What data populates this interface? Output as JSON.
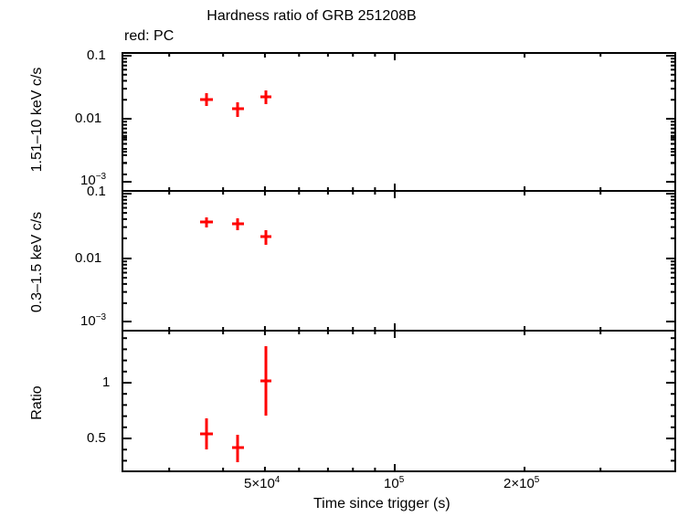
{
  "header": {
    "title": "Hardness ratio of GRB 251208B",
    "legend": "red: PC"
  },
  "axes": {
    "xlabel": "Time since trigger (s)",
    "x_ticks": [
      {
        "label_base": "5×10",
        "label_exp": "4"
      },
      {
        "label_base": "10",
        "label_exp": "5"
      },
      {
        "label_base": "2×10",
        "label_exp": "5"
      }
    ],
    "panels": [
      {
        "ylabel": "1.51–10 keV c/s",
        "ticks": [
          "0.1",
          "0.01",
          "10",
          "−3"
        ]
      },
      {
        "ylabel": "0.3–1.5 keV c/s",
        "ticks": [
          "0.1",
          "0.01",
          "10",
          "−3"
        ]
      },
      {
        "ylabel": "Ratio",
        "ticks": [
          "1",
          "0.5"
        ]
      }
    ]
  },
  "colors": {
    "series": "#ff0000",
    "axes": "#000000"
  },
  "chart_data": [
    {
      "type": "scatter",
      "title": "Hardness ratio of GRB 251208B",
      "panel": "top",
      "ylabel": "1.51–10 keV c/s",
      "xlabel": "Time since trigger (s)",
      "yscale": "log",
      "ylim": [
        0.0008,
        0.11
      ],
      "xscale": "log",
      "xlim": [
        14000,
        280000
      ],
      "series": [
        {
          "name": "PC",
          "color": "#ff0000",
          "x": [
            33000,
            42000,
            52000
          ],
          "y": [
            0.02,
            0.0145,
            0.022
          ]
        }
      ]
    },
    {
      "type": "scatter",
      "panel": "middle",
      "ylabel": "0.3–1.5 keV c/s",
      "yscale": "log",
      "ylim": [
        0.0008,
        0.11
      ],
      "xscale": "log",
      "xlim": [
        14000,
        280000
      ],
      "series": [
        {
          "name": "PC",
          "color": "#ff0000",
          "x": [
            33000,
            42000,
            52000
          ],
          "y": [
            0.036,
            0.034,
            0.022
          ]
        }
      ]
    },
    {
      "type": "scatter",
      "panel": "bottom",
      "ylabel": "Ratio",
      "xlabel": "Time since trigger (s)",
      "yscale": "linear",
      "ylim": [
        0.22,
        1.45
      ],
      "xscale": "log",
      "xlim": [
        14000,
        280000
      ],
      "x_tick_labels": [
        "5×10^4",
        "10^5",
        "2×10^5"
      ],
      "series": [
        {
          "name": "PC",
          "color": "#ff0000",
          "x": [
            33000,
            42000,
            52000
          ],
          "y": [
            0.54,
            0.42,
            1.02
          ],
          "y_err_low": [
            0.4,
            0.29,
            0.7
          ],
          "y_err_high": [
            0.69,
            0.54,
            1.33
          ]
        }
      ]
    }
  ],
  "legend": {
    "position": "top-left",
    "entries": [
      "red: PC"
    ]
  }
}
